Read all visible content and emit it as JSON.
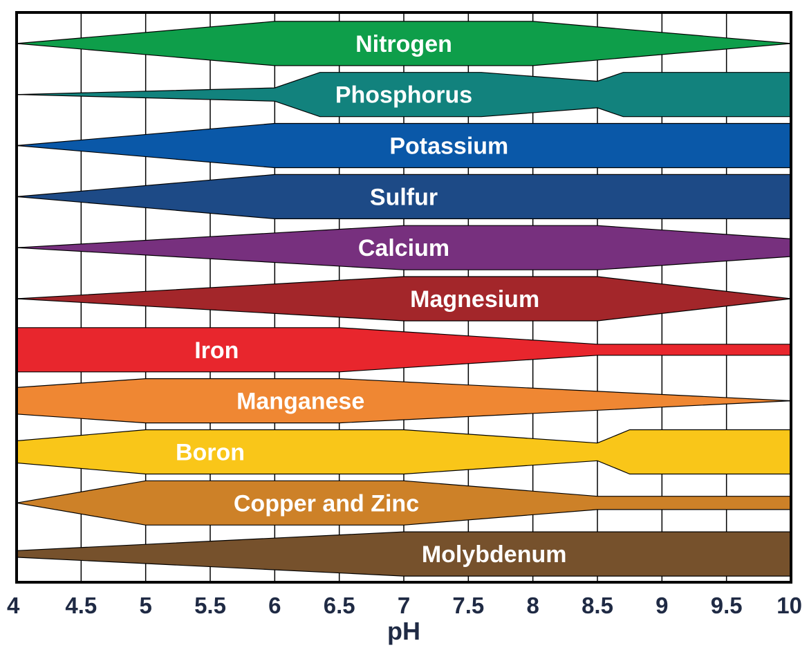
{
  "chart_data": {
    "type": "area",
    "title": "",
    "xlabel": "pH",
    "ylabel": "",
    "xlim": [
      4,
      10
    ],
    "x_ticks": [
      "4",
      "4.5",
      "5",
      "5.5",
      "6",
      "6.5",
      "7",
      "7.5",
      "8",
      "8.5",
      "9",
      "9.5",
      "10"
    ],
    "grid": true,
    "series": [
      {
        "name": "Nitrogen",
        "color": "#0e9e4a",
        "label_x": 7,
        "availability": [
          [
            4,
            0
          ],
          [
            6,
            1
          ],
          [
            8,
            1
          ],
          [
            10,
            0
          ]
        ]
      },
      {
        "name": "Phosphorus",
        "color": "#12827d",
        "label_x": 7,
        "availability": [
          [
            4,
            0
          ],
          [
            6,
            0.3
          ],
          [
            6.35,
            1
          ],
          [
            7.6,
            1
          ],
          [
            8.5,
            0.6
          ],
          [
            8.7,
            1
          ],
          [
            10,
            1
          ]
        ]
      },
      {
        "name": "Potassium",
        "color": "#0a58a8",
        "label_x": 7.35,
        "availability": [
          [
            4,
            0
          ],
          [
            6,
            1
          ],
          [
            10,
            1
          ]
        ]
      },
      {
        "name": "Sulfur",
        "color": "#1d4a86",
        "label_x": 7,
        "availability": [
          [
            4,
            0
          ],
          [
            6,
            1
          ],
          [
            10,
            1
          ]
        ]
      },
      {
        "name": "Calcium",
        "color": "#77307e",
        "label_x": 7,
        "availability": [
          [
            4,
            0
          ],
          [
            7,
            1
          ],
          [
            8.5,
            1
          ],
          [
            10,
            0.4
          ]
        ]
      },
      {
        "name": "Magnesium",
        "color": "#a3262a",
        "label_x": 7.55,
        "availability": [
          [
            4,
            0
          ],
          [
            7,
            1
          ],
          [
            8.5,
            1
          ],
          [
            10,
            0
          ]
        ]
      },
      {
        "name": "Iron",
        "color": "#e8262d",
        "label_x": 5.55,
        "availability": [
          [
            4,
            1
          ],
          [
            6.5,
            1
          ],
          [
            8.5,
            0.25
          ],
          [
            10,
            0.25
          ]
        ]
      },
      {
        "name": "Manganese",
        "color": "#ef8733",
        "label_x": 6.2,
        "availability": [
          [
            4,
            0.6
          ],
          [
            5,
            1
          ],
          [
            6.5,
            1
          ],
          [
            10,
            0
          ]
        ]
      },
      {
        "name": "Boron",
        "color": "#f9c619",
        "label_x": 5.5,
        "availability": [
          [
            4,
            0.5
          ],
          [
            5,
            1
          ],
          [
            7,
            1
          ],
          [
            8.5,
            0.4
          ],
          [
            8.75,
            1
          ],
          [
            10,
            1
          ]
        ]
      },
      {
        "name": "Copper and Zinc",
        "color": "#cd8128",
        "label_x": 6.4,
        "availability": [
          [
            4,
            0
          ],
          [
            5,
            1
          ],
          [
            7,
            1
          ],
          [
            8.5,
            0.3
          ],
          [
            10,
            0.3
          ]
        ]
      },
      {
        "name": "Molybdenum",
        "color": "#76512c",
        "label_x": 7.7,
        "availability": [
          [
            4,
            0.15
          ],
          [
            7,
            1
          ],
          [
            10,
            1
          ]
        ]
      }
    ]
  }
}
